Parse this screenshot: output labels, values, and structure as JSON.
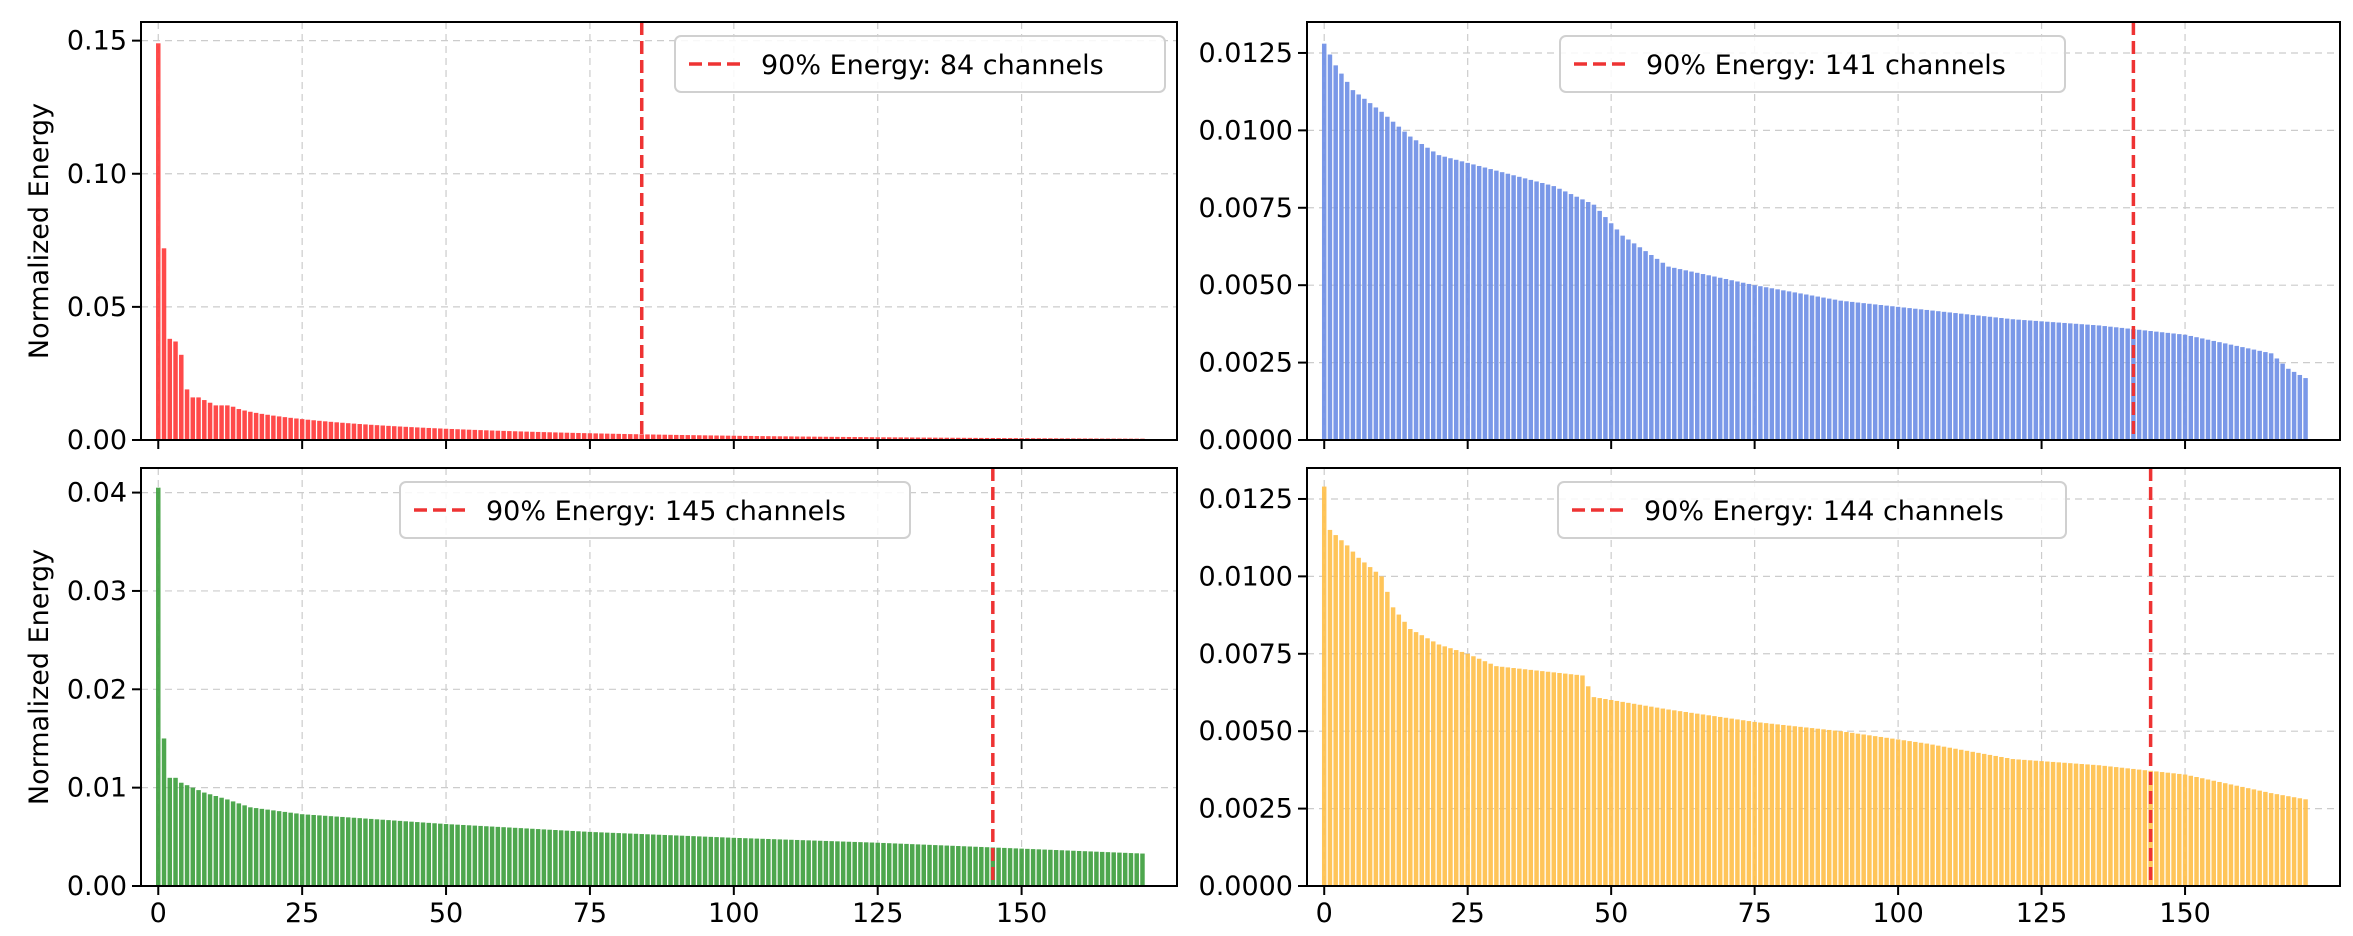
{
  "colors": {
    "red": "#ff3b3b",
    "blue": "#6f8fe6",
    "green": "#3f9f3f",
    "orange": "#ffc04c",
    "threshold": "#ee3333",
    "grid": "#cccccc"
  },
  "chart_data": [
    {
      "type": "bar",
      "color": "#ff3b3b",
      "ylabel": "Normalized Energy",
      "xlim": [
        -3,
        177
      ],
      "ylim": [
        0,
        0.157
      ],
      "xticks": [
        0,
        25,
        50,
        75,
        100,
        125,
        150
      ],
      "xtick_labels": [],
      "yticks": [
        0.0,
        0.05,
        0.1,
        0.15
      ],
      "ytick_labels": [
        "0.00",
        "0.05",
        "0.10",
        "0.15"
      ],
      "n_bars": 172,
      "values_lead": [
        0.149,
        0.072,
        0.038,
        0.037,
        0.032,
        0.019,
        0.016,
        0.016,
        0.015,
        0.014,
        0.013,
        0.013,
        0.013
      ],
      "values_tail_from": 0.0125,
      "values_tail_to": 0.0005,
      "threshold_x": 84,
      "legend": "90% Energy: 84 channels",
      "legend_position": "upper right"
    },
    {
      "type": "bar",
      "color": "#6f8fe6",
      "ylabel": "",
      "xlim": [
        -3,
        177
      ],
      "ylim": [
        0,
        0.0135
      ],
      "xticks": [
        0,
        25,
        50,
        75,
        100,
        125,
        150
      ],
      "xtick_labels": [],
      "yticks": [
        0.0,
        0.0025,
        0.005,
        0.0075,
        0.01,
        0.0125
      ],
      "ytick_labels": [
        "0.0000",
        "0.0025",
        "0.0050",
        "0.0075",
        "0.0100",
        "0.0125"
      ],
      "n_bars": 172,
      "curve": [
        [
          0,
          0.0128
        ],
        [
          2,
          0.0121
        ],
        [
          5,
          0.0113
        ],
        [
          10,
          0.0106
        ],
        [
          15,
          0.0098
        ],
        [
          20,
          0.0092
        ],
        [
          30,
          0.0087
        ],
        [
          40,
          0.0082
        ],
        [
          47,
          0.0076
        ],
        [
          52,
          0.0066
        ],
        [
          60,
          0.0056
        ],
        [
          75,
          0.005
        ],
        [
          90,
          0.0045
        ],
        [
          105,
          0.0042
        ],
        [
          120,
          0.0039
        ],
        [
          135,
          0.0037
        ],
        [
          150,
          0.0034
        ],
        [
          165,
          0.0028
        ],
        [
          168,
          0.0023
        ],
        [
          171,
          0.002
        ]
      ],
      "threshold_x": 141,
      "legend": "90% Energy: 141 channels",
      "legend_position": "upper center"
    },
    {
      "type": "bar",
      "color": "#3f9f3f",
      "ylabel": "Normalized Energy",
      "xlim": [
        -3,
        177
      ],
      "ylim": [
        0,
        0.0425
      ],
      "xticks": [
        0,
        25,
        50,
        75,
        100,
        125,
        150
      ],
      "xtick_labels": [
        "0",
        "25",
        "50",
        "75",
        "100",
        "125",
        "150"
      ],
      "yticks": [
        0.0,
        0.01,
        0.02,
        0.03,
        0.04
      ],
      "ytick_labels": [
        "0.00",
        "0.01",
        "0.02",
        "0.03",
        "0.04"
      ],
      "n_bars": 172,
      "values_lead": [
        0.0405,
        0.015,
        0.011,
        0.011
      ],
      "curve": [
        [
          4,
          0.0105
        ],
        [
          8,
          0.0095
        ],
        [
          12,
          0.0088
        ],
        [
          16,
          0.008
        ],
        [
          25,
          0.0073
        ],
        [
          50,
          0.0063
        ],
        [
          75,
          0.0055
        ],
        [
          100,
          0.0049
        ],
        [
          125,
          0.0044
        ],
        [
          150,
          0.0038
        ],
        [
          171,
          0.0033
        ]
      ],
      "threshold_x": 145,
      "legend": "90% Energy: 145 channels",
      "legend_position": "upper center"
    },
    {
      "type": "bar",
      "color": "#ffc04c",
      "ylabel": "",
      "xlim": [
        -3,
        177
      ],
      "ylim": [
        0,
        0.0135
      ],
      "xticks": [
        0,
        25,
        50,
        75,
        100,
        125,
        150
      ],
      "xtick_labels": [
        "0",
        "25",
        "50",
        "75",
        "100",
        "125",
        "150"
      ],
      "yticks": [
        0.0,
        0.0025,
        0.005,
        0.0075,
        0.01,
        0.0125
      ],
      "ytick_labels": [
        "0.0000",
        "0.0025",
        "0.0050",
        "0.0075",
        "0.0100",
        "0.0125"
      ],
      "n_bars": 172,
      "curve": [
        [
          0,
          0.0129
        ],
        [
          1,
          0.0115
        ],
        [
          4,
          0.011
        ],
        [
          6,
          0.0106
        ],
        [
          10,
          0.01
        ],
        [
          12,
          0.009
        ],
        [
          15,
          0.0083
        ],
        [
          20,
          0.0078
        ],
        [
          25,
          0.0075
        ],
        [
          30,
          0.0071
        ],
        [
          45,
          0.0068
        ],
        [
          47,
          0.0061
        ],
        [
          60,
          0.0057
        ],
        [
          75,
          0.0053
        ],
        [
          90,
          0.005
        ],
        [
          105,
          0.0046
        ],
        [
          120,
          0.0041
        ],
        [
          135,
          0.0039
        ],
        [
          150,
          0.0036
        ],
        [
          165,
          0.003
        ],
        [
          171,
          0.0028
        ]
      ],
      "threshold_x": 144,
      "legend": "90% Energy: 144 channels",
      "legend_position": "upper center"
    }
  ]
}
